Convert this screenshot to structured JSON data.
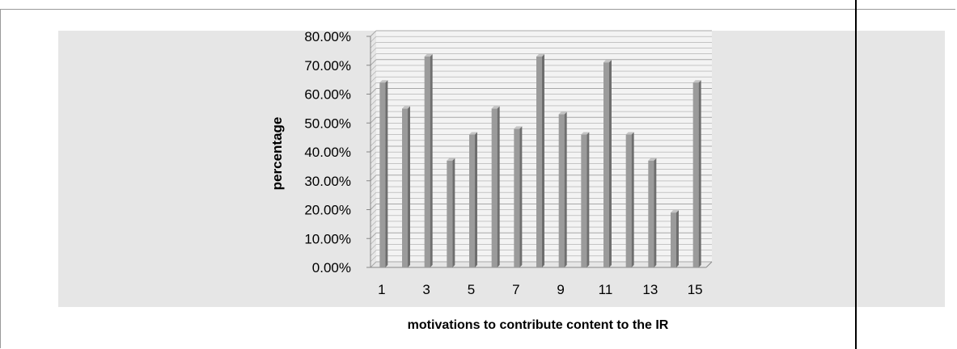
{
  "chart_data": {
    "type": "bar",
    "categories": [
      "1",
      "2",
      "3",
      "4",
      "5",
      "6",
      "7",
      "8",
      "9",
      "10",
      "11",
      "12",
      "13",
      "14",
      "15"
    ],
    "x_tick_labels": [
      "1",
      "3",
      "5",
      "7",
      "9",
      "11",
      "13",
      "15"
    ],
    "values": [
      0.64,
      0.55,
      0.73,
      0.37,
      0.46,
      0.55,
      0.48,
      0.73,
      0.53,
      0.46,
      0.71,
      0.46,
      0.37,
      0.19,
      0.64
    ],
    "y_tick_labels": [
      "0.00%",
      "10.00%",
      "20.00%",
      "30.00%",
      "40.00%",
      "50.00%",
      "60.00%",
      "70.00%",
      "80.00%"
    ],
    "ylim": [
      0,
      0.8
    ],
    "xlabel": "motivations to contribute content to the IR",
    "ylabel": "percentage",
    "grid": true,
    "colors": {
      "bar": "#9b9b9b",
      "bar_dark": "#6e6e6e",
      "bar_light": "#c4c4c4",
      "grid": "#a8a8a8",
      "plot_bg": "#f3f3f3"
    }
  }
}
